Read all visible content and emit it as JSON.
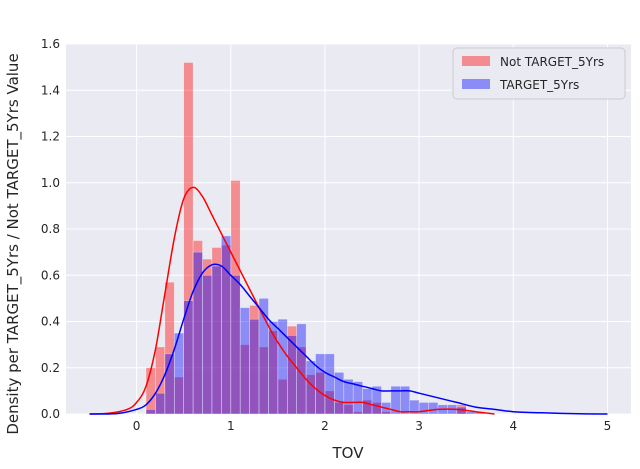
{
  "chart_data": {
    "type": "bar",
    "xlabel": "TOV",
    "ylabel": "Density per TARGET_5Yrs / Not TARGET_5Yrs Value",
    "xlim": [
      -0.75,
      5.25
    ],
    "ylim": [
      0,
      1.6
    ],
    "xticks": [
      0,
      1,
      2,
      3,
      4,
      5
    ],
    "xtick_labels": [
      "0",
      "1",
      "2",
      "3",
      "4",
      "5"
    ],
    "yticks": [
      0,
      0.2,
      0.4,
      0.6,
      0.8,
      1.0,
      1.2,
      1.4,
      1.6
    ],
    "ytick_labels": [
      "0.0",
      "0.2",
      "0.4",
      "0.6",
      "0.8",
      "1.0",
      "1.2",
      "1.4",
      "1.6"
    ],
    "grid": true,
    "legend_position": "top-right",
    "series": [
      {
        "name": "Not TARGET_5Yrs",
        "color": "#ff0000",
        "bin_width": 0.1,
        "bins": [
          {
            "x0": 0.1,
            "value": 0.2
          },
          {
            "x0": 0.2,
            "value": 0.29
          },
          {
            "x0": 0.3,
            "value": 0.57
          },
          {
            "x0": 0.4,
            "value": 0.16
          },
          {
            "x0": 0.5,
            "value": 1.52
          },
          {
            "x0": 0.6,
            "value": 0.75
          },
          {
            "x0": 0.7,
            "value": 0.67
          },
          {
            "x0": 0.8,
            "value": 0.72
          },
          {
            "x0": 0.9,
            "value": 0.73
          },
          {
            "x0": 1.0,
            "value": 1.01
          },
          {
            "x0": 1.1,
            "value": 0.3
          },
          {
            "x0": 1.2,
            "value": 0.47
          },
          {
            "x0": 1.3,
            "value": 0.29
          },
          {
            "x0": 1.4,
            "value": 0.36
          },
          {
            "x0": 1.5,
            "value": 0.15
          },
          {
            "x0": 1.6,
            "value": 0.38
          },
          {
            "x0": 1.7,
            "value": 0.29
          },
          {
            "x0": 1.8,
            "value": 0.17
          },
          {
            "x0": 1.9,
            "value": 0.18
          },
          {
            "x0": 2.0,
            "value": 0.1
          },
          {
            "x0": 2.1,
            "value": 0.05
          },
          {
            "x0": 2.2,
            "value": 0.04
          },
          {
            "x0": 2.3,
            "value": 0.01
          },
          {
            "x0": 2.4,
            "value": 0.06
          },
          {
            "x0": 2.5,
            "value": 0.05
          },
          {
            "x0": 2.6,
            "value": 0.01
          },
          {
            "x0": 3.4,
            "value": 0.04
          }
        ],
        "kde": {
          "x": [
            -0.5,
            -0.3,
            -0.1,
            0.0,
            0.1,
            0.2,
            0.3,
            0.4,
            0.5,
            0.6,
            0.7,
            0.8,
            0.9,
            1.0,
            1.1,
            1.2,
            1.3,
            1.4,
            1.5,
            1.6,
            1.7,
            1.8,
            1.9,
            2.0,
            2.1,
            2.2,
            2.3,
            2.4,
            2.5,
            2.6,
            2.7,
            2.8,
            2.9,
            3.0,
            3.2,
            3.4,
            3.6,
            3.8
          ],
          "y": [
            0.0,
            0.003,
            0.02,
            0.05,
            0.12,
            0.28,
            0.52,
            0.76,
            0.93,
            0.98,
            0.94,
            0.86,
            0.78,
            0.7,
            0.62,
            0.54,
            0.46,
            0.38,
            0.31,
            0.25,
            0.2,
            0.15,
            0.11,
            0.08,
            0.06,
            0.05,
            0.05,
            0.05,
            0.04,
            0.03,
            0.02,
            0.01,
            0.01,
            0.01,
            0.02,
            0.02,
            0.01,
            0.0
          ]
        }
      },
      {
        "name": "TARGET_5Yrs",
        "color": "#0000ff",
        "bin_width": 0.1,
        "bins": [
          {
            "x0": 0.1,
            "value": 0.02
          },
          {
            "x0": 0.2,
            "value": 0.09
          },
          {
            "x0": 0.3,
            "value": 0.26
          },
          {
            "x0": 0.4,
            "value": 0.35
          },
          {
            "x0": 0.5,
            "value": 0.49
          },
          {
            "x0": 0.6,
            "value": 0.7
          },
          {
            "x0": 0.7,
            "value": 0.6
          },
          {
            "x0": 0.8,
            "value": 0.64
          },
          {
            "x0": 0.9,
            "value": 0.77
          },
          {
            "x0": 1.0,
            "value": 0.6
          },
          {
            "x0": 1.1,
            "value": 0.46
          },
          {
            "x0": 1.2,
            "value": 0.41
          },
          {
            "x0": 1.3,
            "value": 0.5
          },
          {
            "x0": 1.4,
            "value": 0.4
          },
          {
            "x0": 1.5,
            "value": 0.41
          },
          {
            "x0": 1.6,
            "value": 0.34
          },
          {
            "x0": 1.7,
            "value": 0.39
          },
          {
            "x0": 1.8,
            "value": 0.23
          },
          {
            "x0": 1.9,
            "value": 0.26
          },
          {
            "x0": 2.0,
            "value": 0.26
          },
          {
            "x0": 2.1,
            "value": 0.18
          },
          {
            "x0": 2.2,
            "value": 0.15
          },
          {
            "x0": 2.3,
            "value": 0.14
          },
          {
            "x0": 2.4,
            "value": 0.11
          },
          {
            "x0": 2.5,
            "value": 0.12
          },
          {
            "x0": 2.6,
            "value": 0.05
          },
          {
            "x0": 2.7,
            "value": 0.12
          },
          {
            "x0": 2.8,
            "value": 0.12
          },
          {
            "x0": 2.9,
            "value": 0.06
          },
          {
            "x0": 3.0,
            "value": 0.05
          },
          {
            "x0": 3.1,
            "value": 0.05
          },
          {
            "x0": 3.2,
            "value": 0.04
          },
          {
            "x0": 3.3,
            "value": 0.04
          },
          {
            "x0": 3.4,
            "value": 0.03
          },
          {
            "x0": 3.5,
            "value": 0.01
          },
          {
            "x0": 3.6,
            "value": 0.01
          }
        ],
        "kde": {
          "x": [
            -0.5,
            -0.2,
            0.0,
            0.1,
            0.2,
            0.3,
            0.4,
            0.5,
            0.6,
            0.7,
            0.8,
            0.9,
            1.0,
            1.1,
            1.2,
            1.3,
            1.4,
            1.5,
            1.6,
            1.7,
            1.8,
            1.9,
            2.0,
            2.1,
            2.2,
            2.3,
            2.4,
            2.5,
            2.6,
            2.7,
            2.8,
            2.9,
            3.0,
            3.2,
            3.4,
            3.6,
            3.8,
            4.0,
            4.3,
            4.7,
            5.0
          ],
          "y": [
            0.0,
            0.002,
            0.02,
            0.04,
            0.09,
            0.17,
            0.28,
            0.41,
            0.53,
            0.61,
            0.645,
            0.64,
            0.6,
            0.56,
            0.51,
            0.46,
            0.41,
            0.37,
            0.33,
            0.29,
            0.25,
            0.21,
            0.18,
            0.16,
            0.14,
            0.13,
            0.12,
            0.11,
            0.1,
            0.1,
            0.1,
            0.1,
            0.09,
            0.07,
            0.05,
            0.03,
            0.02,
            0.01,
            0.005,
            0.001,
            0.0
          ]
        }
      }
    ]
  }
}
